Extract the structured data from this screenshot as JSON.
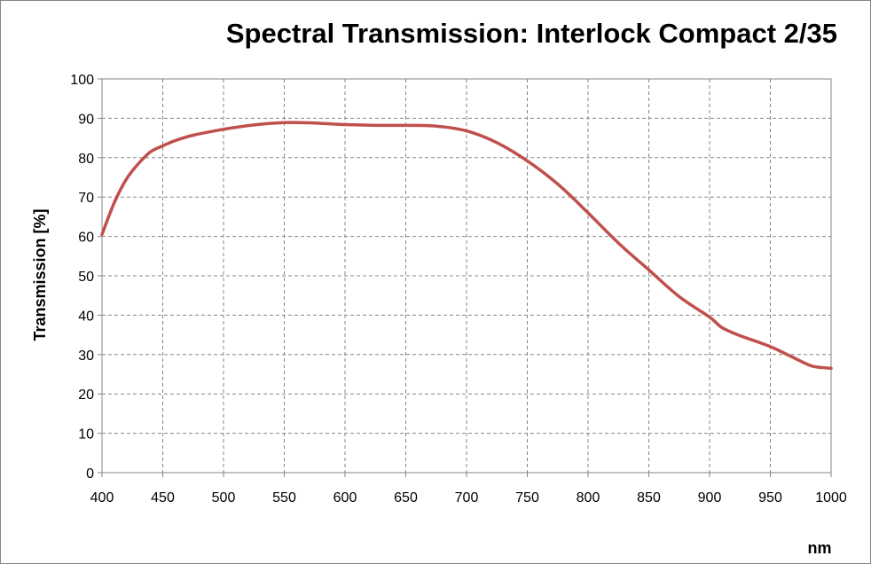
{
  "chart_data": {
    "type": "line",
    "title": "Spectral Transmission: Interlock Compact 2/35",
    "xlabel": "nm",
    "ylabel": "Transmission  [%]",
    "xlim": [
      400,
      1000
    ],
    "ylim": [
      0,
      100
    ],
    "xticks": [
      400,
      450,
      500,
      550,
      600,
      650,
      700,
      750,
      800,
      850,
      900,
      950,
      1000
    ],
    "yticks": [
      0,
      10,
      20,
      30,
      40,
      50,
      60,
      70,
      80,
      90,
      100
    ],
    "grid": true,
    "legend": "none",
    "series": [
      {
        "color": "#c0504d",
        "x": [
          400,
          410,
          420,
          430,
          440,
          450,
          460,
          475,
          500,
          525,
          550,
          575,
          600,
          625,
          650,
          675,
          700,
          725,
          750,
          775,
          800,
          825,
          850,
          875,
          900,
          910,
          925,
          950,
          975,
          985,
          1000
        ],
        "y": [
          60.5,
          68.5,
          74.5,
          78.5,
          81.5,
          83,
          84.3,
          85.7,
          87.2,
          88.3,
          88.9,
          88.8,
          88.4,
          88.2,
          88.2,
          88,
          86.8,
          83.8,
          79.2,
          73.3,
          66,
          58.3,
          51.5,
          44.7,
          39.5,
          36.9,
          34.8,
          32,
          28.3,
          27,
          26.5
        ]
      }
    ]
  }
}
